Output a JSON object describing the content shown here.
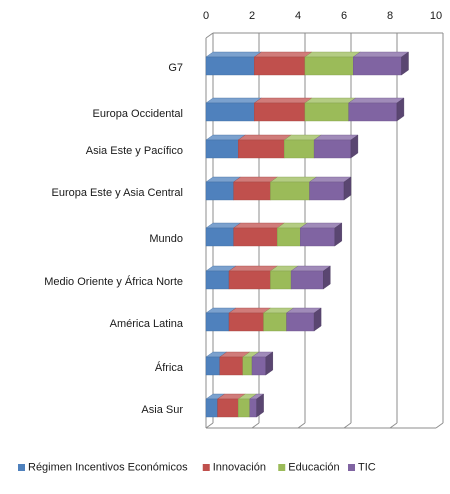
{
  "chart_data": {
    "type": "bar",
    "orientation": "horizontal",
    "stacked": true,
    "three_d": true,
    "x_axis_position": "top",
    "xlim": [
      0,
      10
    ],
    "x_ticks": [
      "0",
      "2",
      "4",
      "6",
      "8",
      "10"
    ],
    "grid": "vertical",
    "legend_position": "bottom",
    "categories": [
      "G7",
      "Europa Occidental",
      "Asia Este y Pacífico",
      "Europa Este y Asia Central",
      "Mundo",
      "Medio Oriente y África Norte",
      "América Latina",
      "África",
      "Asia Sur"
    ],
    "series": [
      {
        "name": "Régimen Incentivos Económicos",
        "color": "#4f81bd",
        "values": [
          2.1,
          2.1,
          1.4,
          1.2,
          1.2,
          1.0,
          1.0,
          0.6,
          0.5
        ]
      },
      {
        "name": "Innovación",
        "color": "#c0504d",
        "values": [
          2.2,
          2.2,
          2.0,
          1.6,
          1.9,
          1.8,
          1.5,
          1.0,
          0.9
        ]
      },
      {
        "name": "Educación",
        "color": "#9bbb59",
        "values": [
          2.1,
          1.9,
          1.3,
          1.7,
          1.0,
          0.9,
          1.0,
          0.4,
          0.5
        ]
      },
      {
        "name": "TIC",
        "color": "#8064a2",
        "values": [
          2.1,
          2.1,
          1.6,
          1.5,
          1.5,
          1.4,
          1.2,
          0.6,
          0.3
        ]
      }
    ]
  }
}
